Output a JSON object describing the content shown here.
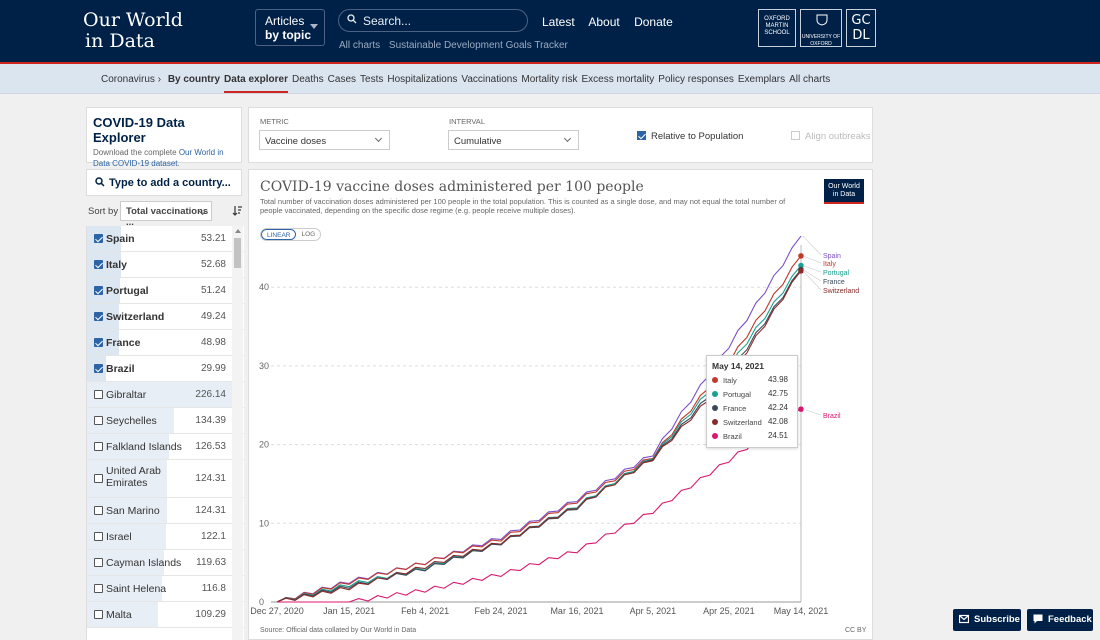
{
  "header": {
    "logo_line1": "Our World",
    "logo_line2": "in Data",
    "articles_label": "Articles",
    "by_topic_label": "by topic",
    "search_placeholder": "Search...",
    "sublinks": [
      "All charts",
      "Sustainable Development Goals Tracker"
    ],
    "nav": [
      "Latest",
      "About",
      "Donate"
    ],
    "partner_oxford_martin": "OXFORD MARTIN SCHOOL",
    "partner_oxford": "UNIVERSITY OF OXFORD",
    "partner_gcdl": "GC DL"
  },
  "subnav": {
    "coronavirus": "Coronavirus ›",
    "items": [
      "By country",
      "Data explorer",
      "Deaths",
      "Cases",
      "Tests",
      "Hospitalizations",
      "Vaccinations",
      "Mortality risk",
      "Excess mortality",
      "Policy responses",
      "Exemplars",
      "All charts"
    ],
    "active_index": 1
  },
  "explorer": {
    "title": "COVID-19 Data Explorer",
    "description_prefix": "Download the complete ",
    "description_link": "Our World in Data COVID-19 dataset",
    "description_suffix": "."
  },
  "country_search": {
    "placeholder": "Type to add a country..."
  },
  "sort": {
    "label": "Sort by",
    "value": "Total vaccinations ..."
  },
  "countries": [
    {
      "name": "Spain",
      "value": "53.21",
      "checked": true,
      "bar": 0.235
    },
    {
      "name": "Italy",
      "value": "52.68",
      "checked": true,
      "bar": 0.233
    },
    {
      "name": "Portugal",
      "value": "51.24",
      "checked": true,
      "bar": 0.226
    },
    {
      "name": "Switzerland",
      "value": "49.24",
      "checked": true,
      "bar": 0.218
    },
    {
      "name": "France",
      "value": "48.98",
      "checked": true,
      "bar": 0.216
    },
    {
      "name": "Brazil",
      "value": "29.99",
      "checked": true,
      "bar": 0.133
    },
    {
      "name": "Gibraltar",
      "value": "226.14",
      "checked": false,
      "bar": 1.0
    },
    {
      "name": "Seychelles",
      "value": "134.39",
      "checked": false,
      "bar": 0.594
    },
    {
      "name": "Falkland Islands",
      "value": "126.53",
      "checked": false,
      "bar": 0.559
    },
    {
      "name": "United Arab Emirates",
      "value": "124.31",
      "checked": false,
      "bar": 0.55,
      "tall": true
    },
    {
      "name": "San Marino",
      "value": "124.31",
      "checked": false,
      "bar": 0.55
    },
    {
      "name": "Israel",
      "value": "122.1",
      "checked": false,
      "bar": 0.54
    },
    {
      "name": "Cayman Islands",
      "value": "119.63",
      "checked": false,
      "bar": 0.529
    },
    {
      "name": "Saint Helena",
      "value": "116.8",
      "checked": false,
      "bar": 0.516
    },
    {
      "name": "Malta",
      "value": "109.29",
      "checked": false,
      "bar": 0.483
    }
  ],
  "controls": {
    "metric_label": "METRIC",
    "metric_value": "Vaccine doses",
    "interval_label": "INTERVAL",
    "interval_value": "Cumulative",
    "relative_label": "Relative to Population",
    "relative_checked": true,
    "align_label": "Align outbreaks",
    "align_checked": false
  },
  "chart": {
    "title": "COVID-19 vaccine doses administered per 100 people",
    "subtitle": "Total number of vaccination doses administered per 100 people in the total population. This is counted as a single dose, and may not equal the total number of people vaccinated, depending on the specific dose regime (e.g. people receive multiple doses).",
    "badge_line1": "Our World",
    "badge_line2": "in Data",
    "scale_linear": "LINEAR",
    "scale_log": "LOG",
    "source": "Source: Official data collated by Our World in Data",
    "license": "CC BY"
  },
  "tooltip": {
    "date": "May 14, 2021",
    "rows": [
      {
        "name": "Italy",
        "value": "43.98",
        "color": "#c0392b"
      },
      {
        "name": "Portugal",
        "value": "42.75",
        "color": "#18a090"
      },
      {
        "name": "France",
        "value": "42.24",
        "color": "#3a4a5a"
      },
      {
        "name": "Switzerland",
        "value": "42.08",
        "color": "#8b2a2a"
      },
      {
        "name": "Brazil",
        "value": "24.51",
        "color": "#d8186e"
      }
    ]
  },
  "chart_data": {
    "type": "line",
    "title": "COVID-19 vaccine doses administered per 100 people",
    "x_tick_labels": [
      "Dec 27, 2020",
      "Jan 15, 2021",
      "Feb 4, 2021",
      "Feb 24, 2021",
      "Mar 16, 2021",
      "Apr 5, 2021",
      "Apr 25, 2021",
      "May 14, 2021"
    ],
    "y_ticks": [
      0,
      10,
      20,
      30,
      40
    ],
    "ylim": [
      0,
      46
    ],
    "x": [
      "2020-12-27",
      "2021-01-15",
      "2021-02-04",
      "2021-02-24",
      "2021-03-16",
      "2021-04-05",
      "2021-04-25",
      "2021-05-14"
    ],
    "series": [
      {
        "name": "Spain",
        "color": "#7b4fc6",
        "values": [
          0,
          2.6,
          5.0,
          8.2,
          13.0,
          18.8,
          32.5,
          46.5
        ]
      },
      {
        "name": "Italy",
        "color": "#c0392b",
        "values": [
          0,
          2.5,
          5.0,
          8.0,
          12.8,
          18.5,
          30.5,
          43.98
        ]
      },
      {
        "name": "Portugal",
        "color": "#18a090",
        "values": [
          0,
          2.2,
          4.3,
          7.6,
          12.2,
          18.4,
          29.8,
          42.75
        ]
      },
      {
        "name": "France",
        "color": "#3a4a5a",
        "values": [
          0,
          2.0,
          4.2,
          7.5,
          12.0,
          18.3,
          29.0,
          42.24
        ]
      },
      {
        "name": "Switzerland",
        "color": "#8b2a2a",
        "values": [
          0,
          1.8,
          4.5,
          7.6,
          12.1,
          18.2,
          28.5,
          42.08
        ]
      },
      {
        "name": "Brazil",
        "color": "#d8186e",
        "values": [
          0,
          0,
          1.5,
          3.5,
          6.5,
          11.5,
          18.0,
          24.51
        ]
      }
    ],
    "highlighted_x": "2021-05-14"
  },
  "footer": {
    "subscribe_label": "Subscribe",
    "feedback_label": "Feedback"
  }
}
